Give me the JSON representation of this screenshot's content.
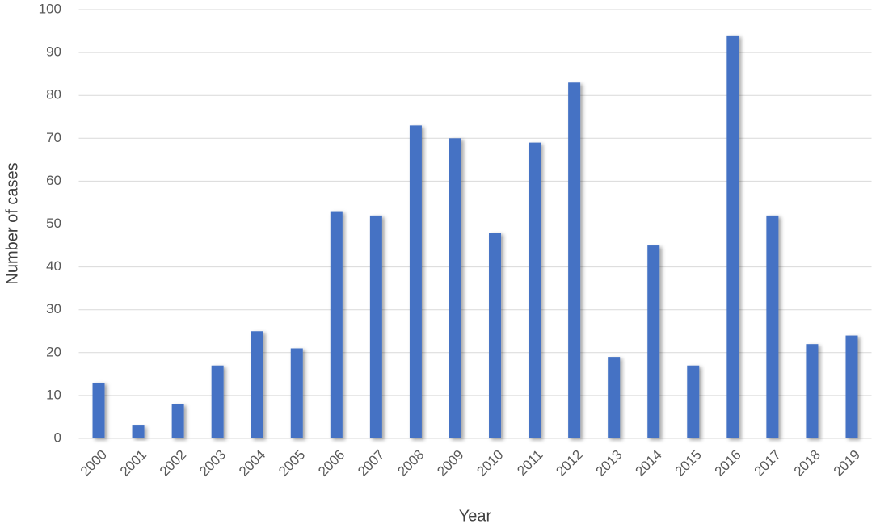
{
  "chart_data": {
    "type": "bar",
    "x_label": "Year",
    "y_label": "Number of cases",
    "categories": [
      "2000",
      "2001",
      "2002",
      "2003",
      "2004",
      "2005",
      "2006",
      "2007",
      "2008",
      "2009",
      "2010",
      "2011",
      "2012",
      "2013",
      "2014",
      "2015",
      "2016",
      "2017",
      "2018",
      "2019"
    ],
    "values": [
      13,
      3,
      8,
      17,
      25,
      21,
      53,
      52,
      73,
      70,
      48,
      69,
      83,
      19,
      45,
      17,
      94,
      52,
      22,
      24
    ],
    "color": "#4472c4",
    "ylim": [
      0,
      100
    ],
    "yticks": [
      0,
      10,
      20,
      30,
      40,
      50,
      60,
      70,
      80,
      90,
      100
    ],
    "grid": true
  }
}
